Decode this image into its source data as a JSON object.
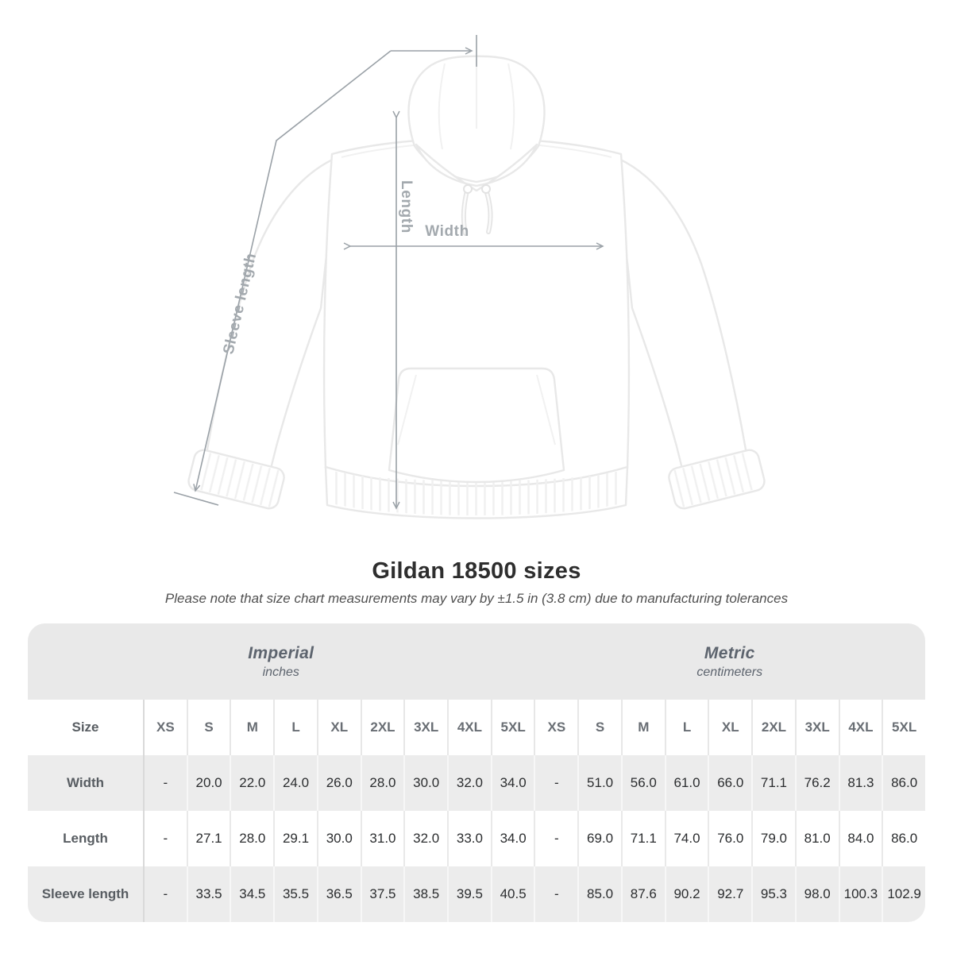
{
  "diagram": {
    "length_label": "Length",
    "width_label": "Width",
    "sleeve_label": "Sleeve length"
  },
  "title": "Gildan 18500 sizes",
  "subtitle": "Please note that size chart measurements may vary by ±1.5 in (3.8 cm) due to manufacturing tolerances",
  "table": {
    "unit_groups": [
      {
        "name": "Imperial",
        "unit": "inches"
      },
      {
        "name": "Metric",
        "unit": "centimeters"
      }
    ],
    "size_label": "Size",
    "sizes": [
      "XS",
      "S",
      "M",
      "L",
      "XL",
      "2XL",
      "3XL",
      "4XL",
      "5XL"
    ],
    "rows": [
      {
        "label": "Width",
        "imperial": [
          "-",
          "20.0",
          "22.0",
          "24.0",
          "26.0",
          "28.0",
          "30.0",
          "32.0",
          "34.0"
        ],
        "metric": [
          "-",
          "51.0",
          "56.0",
          "61.0",
          "66.0",
          "71.1",
          "76.2",
          "81.3",
          "86.0"
        ]
      },
      {
        "label": "Length",
        "imperial": [
          "-",
          "27.1",
          "28.0",
          "29.1",
          "30.0",
          "31.0",
          "32.0",
          "33.0",
          "34.0"
        ],
        "metric": [
          "-",
          "69.0",
          "71.1",
          "74.0",
          "76.0",
          "79.0",
          "81.0",
          "84.0",
          "86.0"
        ]
      },
      {
        "label": "Sleeve length",
        "imperial": [
          "-",
          "33.5",
          "34.5",
          "35.5",
          "36.5",
          "37.5",
          "38.5",
          "39.5",
          "40.5"
        ],
        "metric": [
          "-",
          "85.0",
          "87.6",
          "90.2",
          "92.7",
          "95.3",
          "98.0",
          "100.3",
          "102.9"
        ]
      }
    ]
  },
  "colors": {
    "measure_line": "#9aa1a7",
    "measure_label": "#a3a9ae",
    "band_bg": "#e9e9e9",
    "row_shaded_bg": "#ececec",
    "header_text": "#5d646e",
    "value_text": "#2b2d2f",
    "title_text": "#2e2e2e"
  }
}
